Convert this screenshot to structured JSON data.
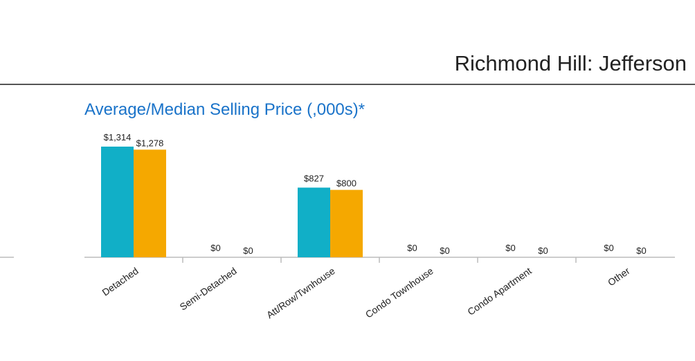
{
  "header": {
    "title": "Richmond Hill: Jefferson"
  },
  "colors": {
    "title": "#1a73c9",
    "series_average": "#11afc7",
    "series_median": "#f5a800",
    "axis": "#bbbbbb"
  },
  "chart_data": {
    "type": "bar",
    "title": "Average/Median Selling Price (,000s)*",
    "xlabel": "",
    "ylabel": "",
    "ylim": [
      0,
      1400
    ],
    "grid": false,
    "legend": "none",
    "categories": [
      "Detached",
      "Semi-Detached",
      "Att/Row/Twnhouse",
      "Condo Townhouse",
      "Condo Apartment",
      "Other"
    ],
    "series": [
      {
        "values": [
          1314,
          0,
          827,
          0,
          0,
          0
        ],
        "labels": [
          "$1,314",
          "$0",
          "$827",
          "$0",
          "$0",
          "$0"
        ]
      },
      {
        "values": [
          1278,
          0,
          800,
          0,
          0,
          0
        ],
        "labels": [
          "$1,278",
          "$0",
          "$800",
          "$0",
          "$0",
          "$0"
        ]
      }
    ]
  }
}
